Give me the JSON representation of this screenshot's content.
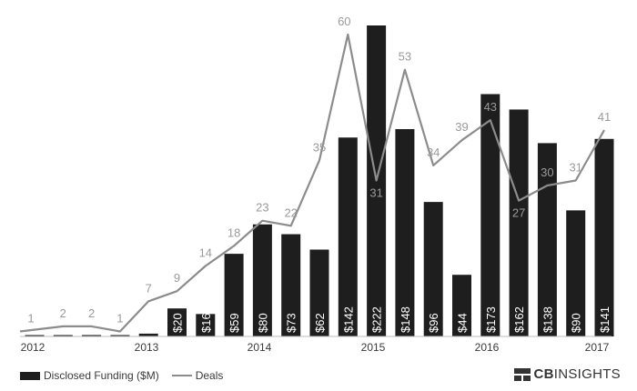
{
  "chart_data": {
    "type": "bar",
    "title": "",
    "xlabel": "",
    "ylabel": "",
    "x_tick_labels": [
      "2012",
      "2013",
      "2014",
      "2015",
      "2016",
      "2017"
    ],
    "series": [
      {
        "name": "Disclosed Funding ($M)",
        "type": "bar",
        "values": [
          0.5,
          0.5,
          1,
          0.5,
          2,
          20,
          16,
          59,
          80,
          73,
          62,
          142,
          222,
          148,
          96,
          44,
          173,
          162,
          138,
          90,
          141
        ],
        "labels": [
          "",
          "",
          "",
          "",
          "",
          "$20",
          "$16",
          "$59",
          "$80",
          "$73",
          "$62",
          "$142",
          "$222",
          "$148",
          "$96",
          "$44",
          "$173",
          "$162",
          "$138",
          "$90",
          "$141"
        ]
      },
      {
        "name": "Deals",
        "type": "line",
        "values": [
          1,
          2,
          2,
          1,
          7,
          9,
          14,
          18,
          23,
          22,
          35,
          60,
          31,
          53,
          34,
          39,
          43,
          27,
          30,
          31,
          41
        ]
      }
    ],
    "legend": "bottom-left"
  },
  "colors": {
    "bar": "#1e1e1e",
    "line": "#8c8c8c",
    "deal_label": "#9a9a9a"
  },
  "brand": {
    "cb": "CB",
    "insights": "INSIGHTS",
    "icon": "cb-insights-logo-icon"
  }
}
